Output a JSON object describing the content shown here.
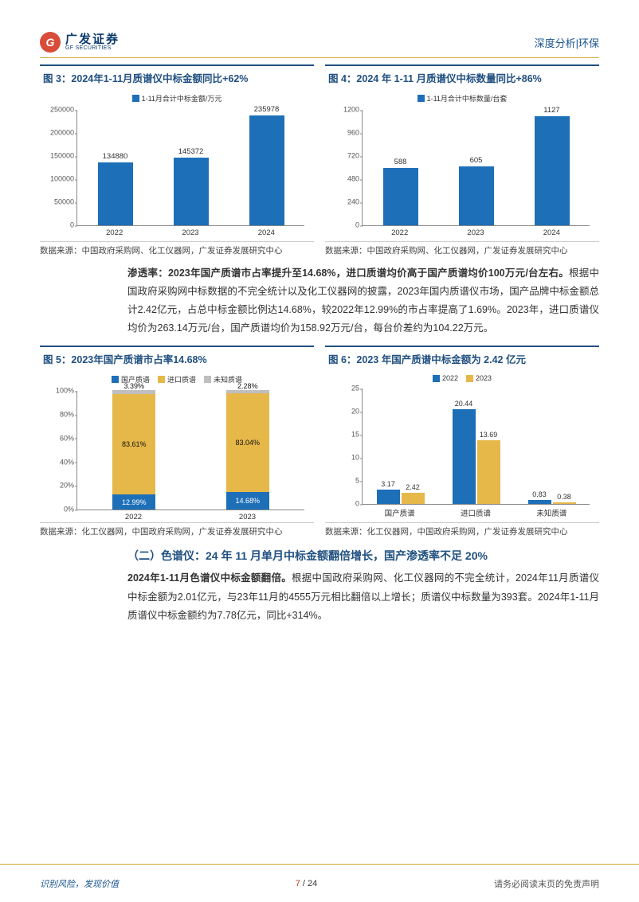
{
  "header": {
    "logo_letter": "G",
    "logo_cn": "广发证券",
    "logo_en": "GF SECURITIES",
    "right": "深度分析|环保"
  },
  "colors": {
    "brand_blue": "#205080",
    "accent_gold": "#d4a83a",
    "bar_blue": "#1d6fb8",
    "bar_gold": "#e6b84a",
    "bar_gray": "#bfbfbf"
  },
  "chart3": {
    "title": "图 3：2024年1-11月质谱仪中标金额同比+62%",
    "legend": "1-11月合计中标金额/万元",
    "ymax": 250000,
    "ytick_step": 50000,
    "yticks": [
      "0",
      "50000",
      "100000",
      "150000",
      "200000",
      "250000"
    ],
    "categories": [
      "2022",
      "2023",
      "2024"
    ],
    "values": [
      134880,
      145372,
      235978
    ],
    "value_labels": [
      "134880",
      "145372",
      "235978"
    ],
    "bar_color": "#1d6fb8",
    "source": "数据来源：中国政府采购网、化工仪器网，广发证券发展研究中心"
  },
  "chart4": {
    "title": "图 4：2024 年 1-11 月质谱仪中标数量同比+86%",
    "legend": "1-11月合计中标数量/台套",
    "ymax": 1200,
    "ytick_step": 240,
    "yticks": [
      "0",
      "240",
      "480",
      "720",
      "960",
      "1200"
    ],
    "categories": [
      "2022",
      "2023",
      "2024"
    ],
    "values": [
      588,
      605,
      1127
    ],
    "value_labels": [
      "588",
      "605",
      "1127"
    ],
    "bar_color": "#1d6fb8",
    "source": "数据来源：中国政府采购网、化工仪器网，广发证券发展研究中心"
  },
  "para1": {
    "bold": "渗透率：2023年国产质谱市占率提升至14.68%，进口质谱均价高于国产质谱均价100万元/台左右。",
    "rest": "根据中国政府采购网中标数据的不完全统计以及化工仪器网的披露，2023年国内质谱仪市场，国产品牌中标金额总计2.42亿元，占总中标金额比例达14.68%，较2022年12.99%的市占率提高了1.69%。2023年，进口质谱仪均价为263.14万元/台，国产质谱均价为158.92万元/台，每台价差约为104.22万元。"
  },
  "chart5": {
    "title": "图 5：2023年国产质谱市占率14.68%",
    "legends": [
      "国产质谱",
      "进口质谱",
      "未知质谱"
    ],
    "legend_colors": [
      "#1d6fb8",
      "#e6b84a",
      "#bfbfbf"
    ],
    "categories": [
      "2022",
      "2023"
    ],
    "series": [
      {
        "values": [
          12.99,
          83.61,
          3.39
        ],
        "labels": [
          "12.99%",
          "83.61%",
          "3.39%"
        ]
      },
      {
        "values": [
          14.68,
          83.04,
          2.28
        ],
        "labels": [
          "14.68%",
          "83.04%",
          "2.28%"
        ]
      }
    ],
    "yticks": [
      "0%",
      "20%",
      "40%",
      "60%",
      "80%",
      "100%"
    ],
    "source": "数据来源：化工仪器网，中国政府采购网，广发证券发展研究中心"
  },
  "chart6": {
    "title": "图 6：2023 年国产质谱中标金额为 2.42 亿元",
    "legends": [
      "2022",
      "2023"
    ],
    "legend_colors": [
      "#1d6fb8",
      "#e6b84a"
    ],
    "categories": [
      "国产质谱",
      "进口质谱",
      "未知质谱"
    ],
    "ymax": 25,
    "yticks": [
      "0",
      "5",
      "10",
      "15",
      "20",
      "25"
    ],
    "series_2022": [
      3.17,
      20.44,
      0.83
    ],
    "series_2023": [
      2.42,
      13.69,
      0.38
    ],
    "labels_2022": [
      "3.17",
      "20.44",
      "0.83"
    ],
    "labels_2023": [
      "2.42",
      "13.69",
      "0.38"
    ],
    "source": "数据来源：化工仪器网，中国政府采购网，广发证券发展研究中心"
  },
  "heading2": "（二）色谱仪：24 年 11 月单月中标金额翻倍增长，国产渗透率不足 20%",
  "para2": {
    "bold": "2024年1-11月色谱仪中标金额翻倍。",
    "rest": "根据中国政府采购网、化工仪器网的不完全统计，2024年11月质谱仪中标金额为2.01亿元，与23年11月的4555万元相比翻倍以上增长；质谱仪中标数量为393套。2024年1-11月质谱仪中标金额约为7.78亿元，同比+314%。"
  },
  "footer": {
    "left": "识别风险，发现价值",
    "page_cur": "7",
    "page_sep": " / ",
    "page_total": "24",
    "right": "请务必阅读末页的免责声明"
  }
}
